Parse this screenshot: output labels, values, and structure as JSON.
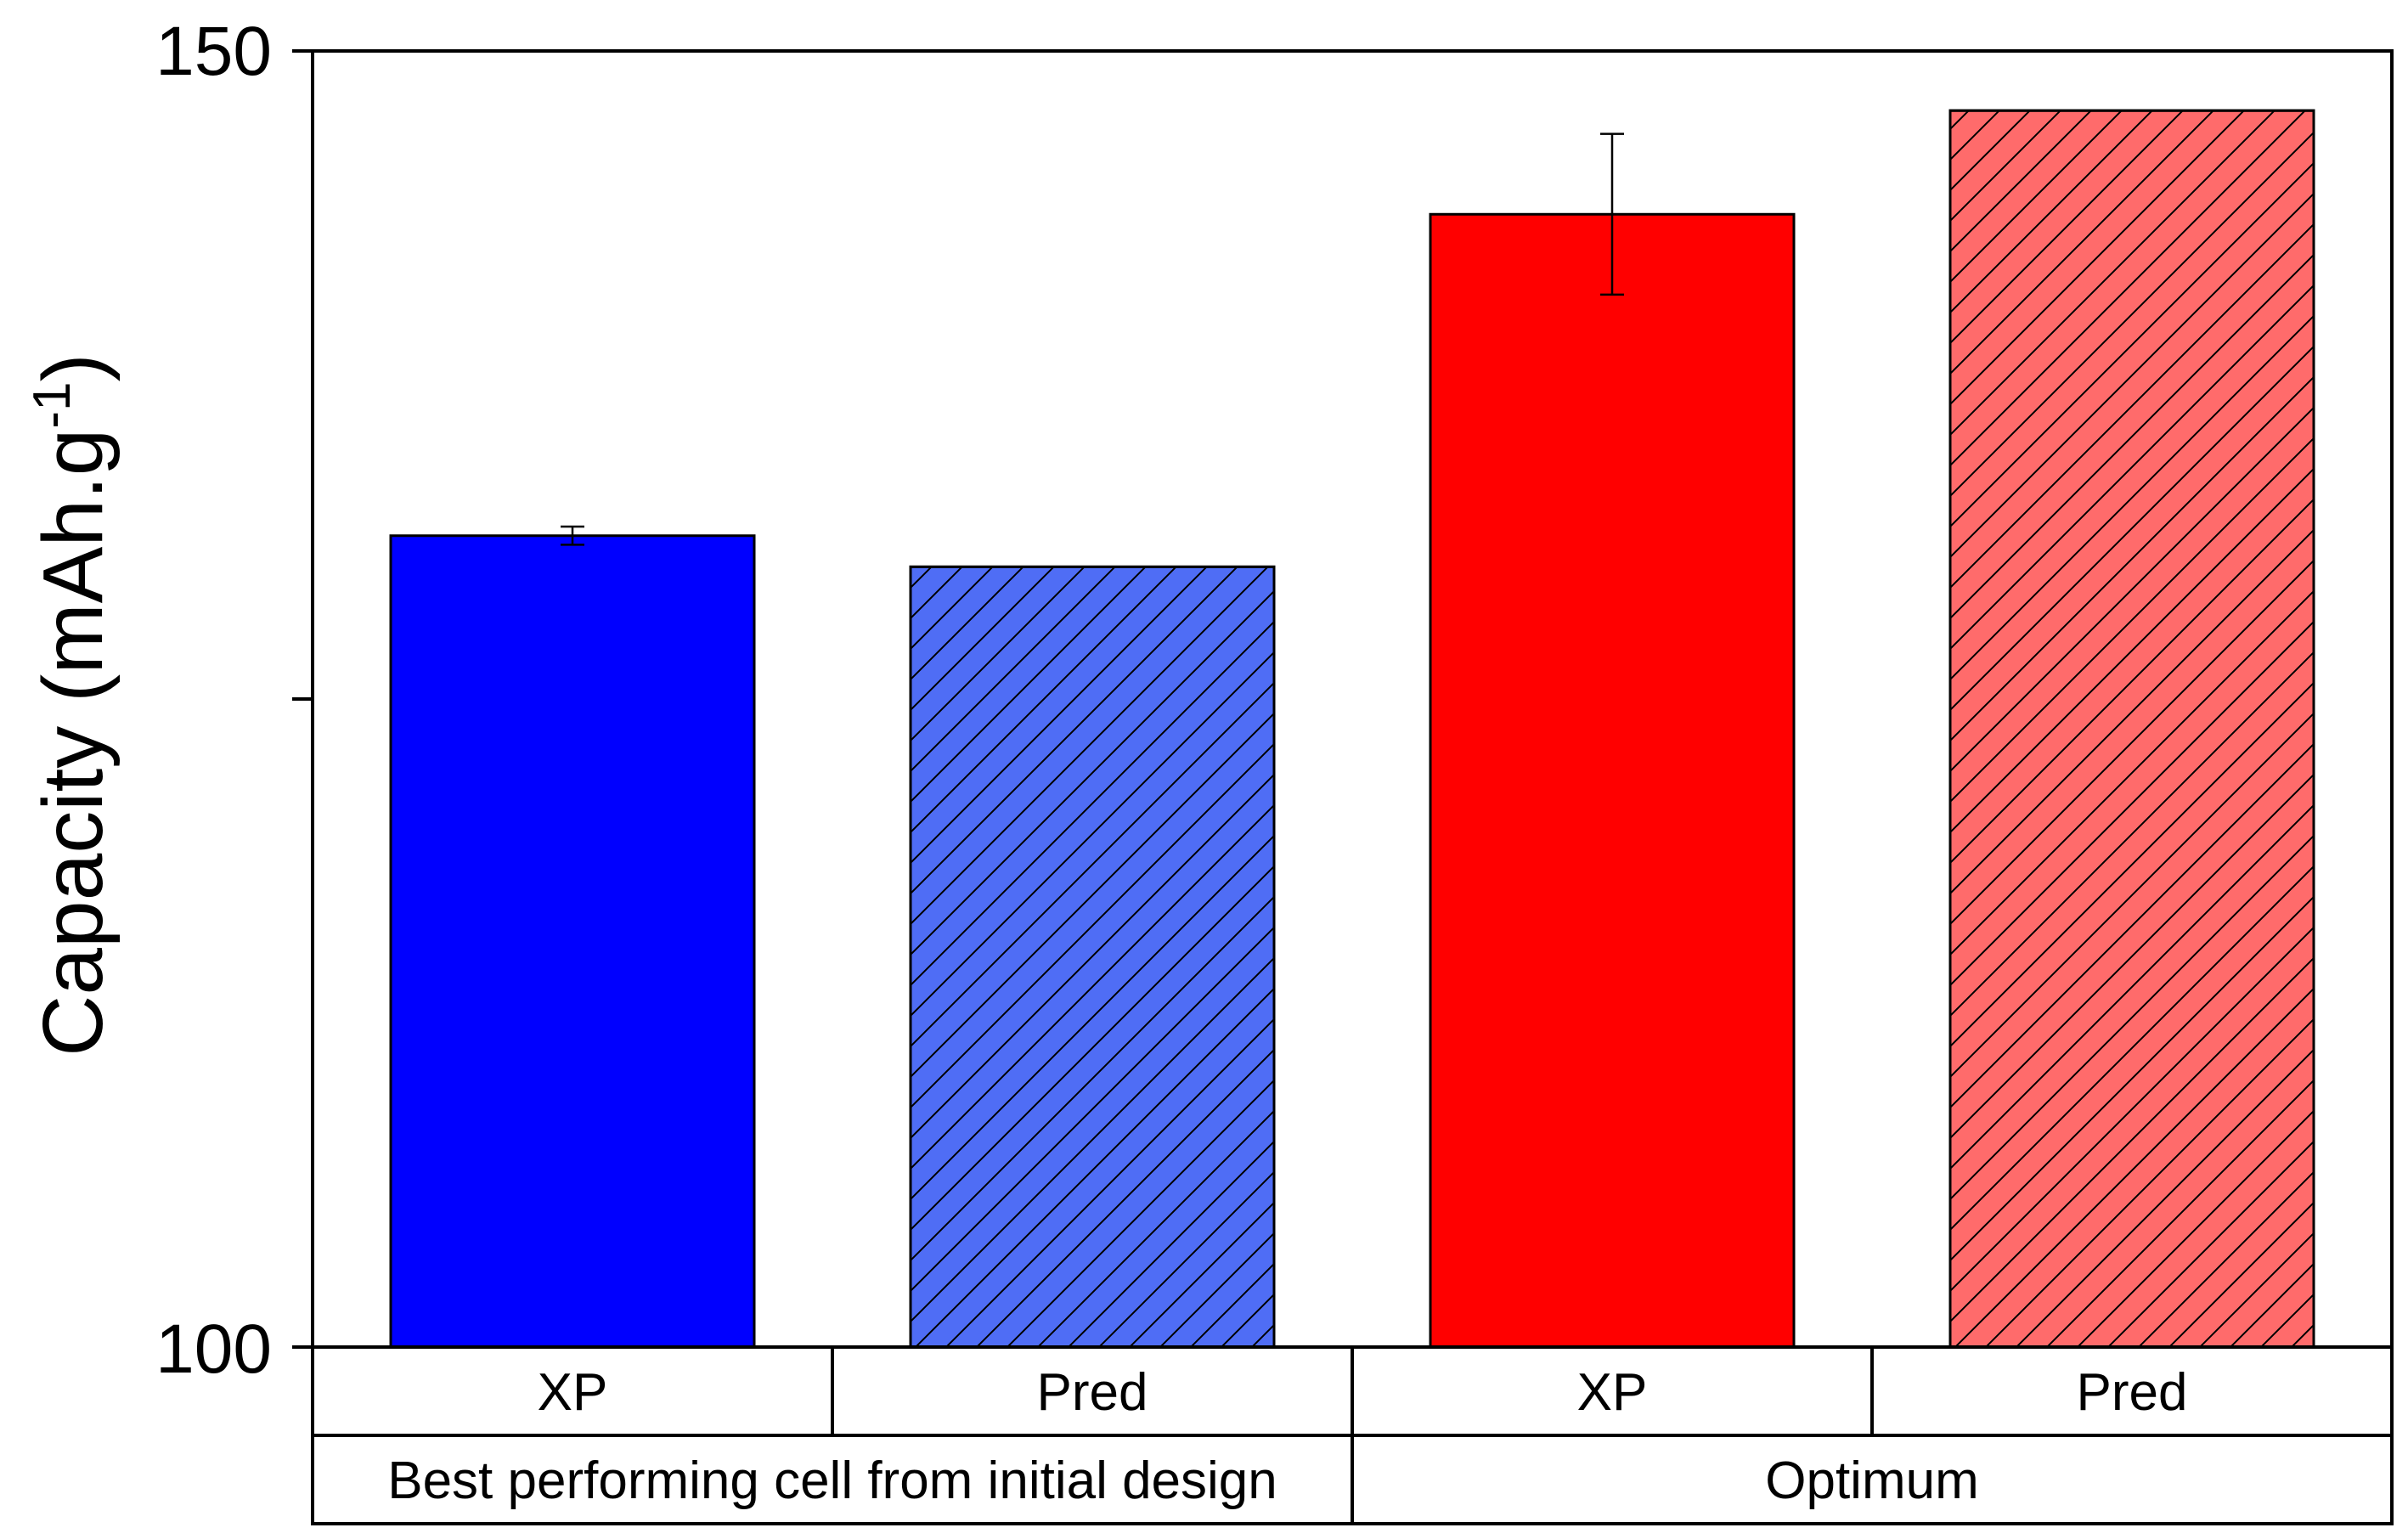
{
  "chart_data": {
    "type": "bar",
    "title": "",
    "xlabel": "",
    "ylabel": "Capacity (mAh.g",
    "ylabel_superscript": "-1",
    "ylabel_close": ")",
    "ylim": [
      100,
      150
    ],
    "yticks": [
      100,
      125,
      150
    ],
    "ytick_labels": [
      "100",
      "",
      "150"
    ],
    "groups": [
      {
        "name": "Best performing cell from initial design",
        "bars": [
          {
            "label": "XP",
            "value": 131.3,
            "error": 0.35,
            "color": "#0000FF",
            "hatched": false
          },
          {
            "label": "Pred",
            "value": 130.1,
            "error": null,
            "color": "#4F6DF5",
            "hatched": true
          }
        ]
      },
      {
        "name": "Optimum",
        "bars": [
          {
            "label": "XP",
            "value": 143.7,
            "error": 3.1,
            "color": "#FF0000",
            "hatched": false
          },
          {
            "label": "Pred",
            "value": 147.7,
            "error": null,
            "color": "#FF6B6B",
            "hatched": true
          }
        ]
      }
    ]
  }
}
